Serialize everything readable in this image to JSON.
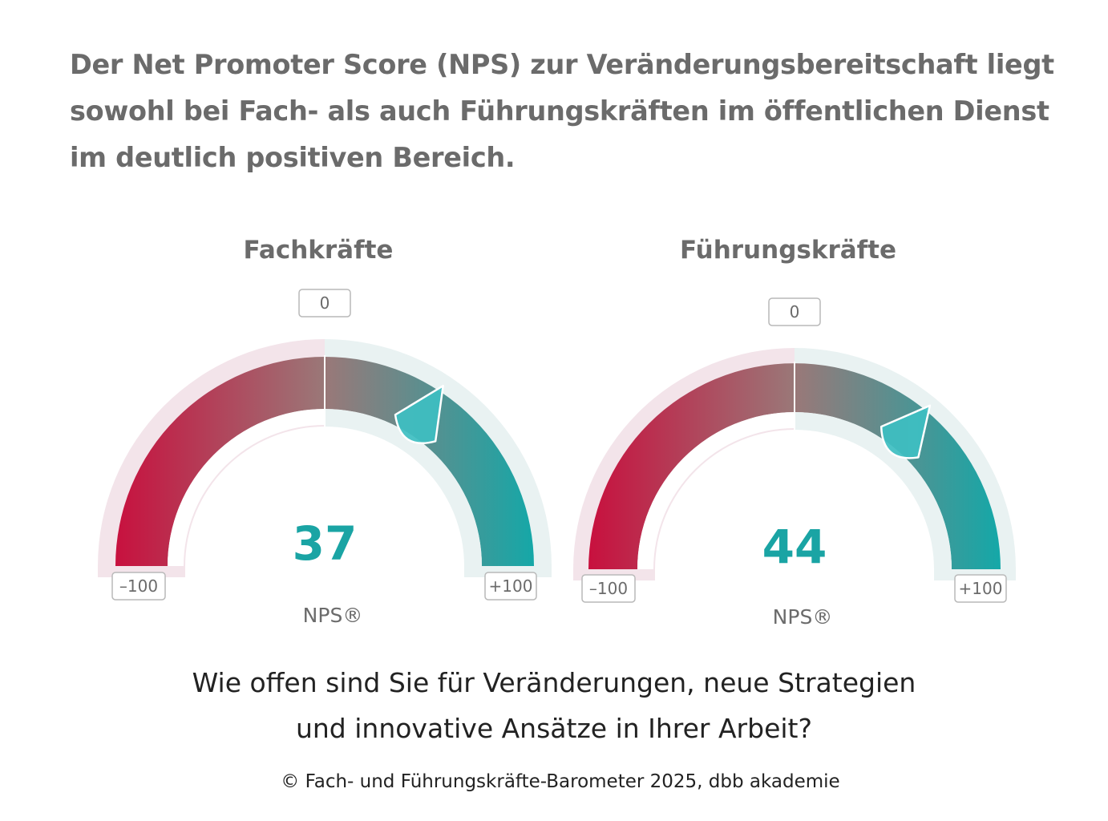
{
  "headline": [
    "Der Net Promoter Score (NPS) zur Veränderungsbereitschaft liegt",
    "sowohl bei Fach- als auch Führungskräften im öffentlichen Dienst",
    "im deutlich positiven Bereich."
  ],
  "question": [
    "Wie offen sind Sie für Veränderungen, neue Strategien",
    "und innovative Ansätze in Ihrer Arbeit?"
  ],
  "source": "© Fach- und Führungskräfte-Barometer 2025, dbb akademie",
  "colors": {
    "negative": "#c8103e",
    "positive": "#14a8a8",
    "needle": "#3ebfc2",
    "value": "#1aa4a4"
  },
  "chart_data": [
    {
      "type": "gauge",
      "title": "Fachkräfte",
      "value": 37,
      "value_label": "37",
      "min": -100,
      "max": 100,
      "min_label": "–100",
      "max_label": "+100",
      "center_label": "0",
      "metric_label": "NPS®"
    },
    {
      "type": "gauge",
      "title": "Führungskräfte",
      "value": 44,
      "value_label": "44",
      "min": -100,
      "max": 100,
      "min_label": "–100",
      "max_label": "+100",
      "center_label": "0",
      "metric_label": "NPS®"
    }
  ]
}
